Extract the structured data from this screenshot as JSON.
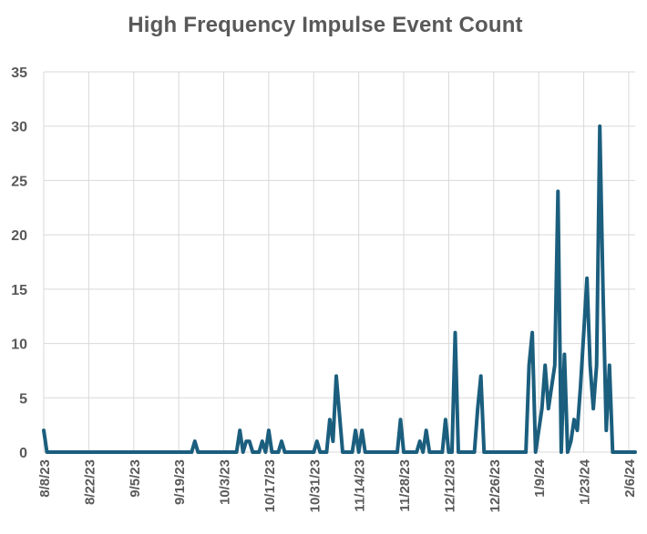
{
  "chart_data": {
    "type": "line",
    "title": "High Frequency Impulse Event Count",
    "xlabel": "",
    "ylabel": "",
    "ylim": [
      0,
      35
    ],
    "yticks": [
      0,
      5,
      10,
      15,
      20,
      25,
      30,
      35
    ],
    "xlim_days": [
      0,
      184
    ],
    "x_tick_labels": [
      "8/8/23",
      "8/22/23",
      "9/5/23",
      "9/19/23",
      "10/3/23",
      "10/17/23",
      "10/31/23",
      "11/14/23",
      "11/28/23",
      "12/12/23",
      "12/26/23",
      "1/9/24",
      "1/23/24",
      "2/6/24"
    ],
    "grid": true,
    "legend": "none",
    "series": [
      {
        "name": "High Frequency Impulse Event Count",
        "color": "#1b5e7e",
        "x_days": [
          0,
          1,
          46,
          47,
          48,
          60,
          61,
          62,
          63,
          64,
          65,
          67,
          68,
          69,
          70,
          71,
          72,
          73,
          74,
          75,
          76,
          77,
          78,
          79,
          84,
          85,
          86,
          88,
          89,
          90,
          91,
          93,
          94,
          95,
          96,
          97,
          98,
          99,
          100,
          110,
          111,
          112,
          116,
          117,
          118,
          119,
          120,
          124,
          125,
          126,
          127,
          128,
          129,
          130,
          131,
          132,
          133,
          134,
          135,
          136,
          137,
          150,
          151,
          152,
          153,
          155,
          156,
          157,
          158,
          159,
          160,
          161,
          162,
          163,
          164,
          165,
          166,
          167,
          168,
          169,
          170,
          171,
          172,
          173,
          174,
          175,
          176,
          177,
          178,
          179,
          180,
          181,
          182,
          184
        ],
        "values": [
          2,
          0,
          0,
          1,
          0,
          0,
          2,
          0,
          1,
          1,
          0,
          0,
          1,
          0,
          2,
          0,
          0,
          0,
          1,
          0,
          0,
          0,
          0,
          0,
          0,
          1,
          0,
          0,
          3,
          1,
          7,
          0,
          0,
          0,
          0,
          2,
          0,
          2,
          0,
          0,
          3,
          0,
          0,
          1,
          0,
          2,
          0,
          0,
          3,
          0,
          0,
          11,
          0,
          0,
          0,
          0,
          0,
          0,
          4,
          7,
          0,
          0,
          8,
          11,
          0,
          4,
          8,
          4,
          6,
          8,
          24,
          0,
          9,
          0,
          1,
          3,
          2,
          6,
          11,
          16,
          8,
          4,
          8,
          30,
          15,
          2,
          8,
          0,
          0,
          0,
          0,
          0,
          0,
          0
        ]
      }
    ]
  }
}
